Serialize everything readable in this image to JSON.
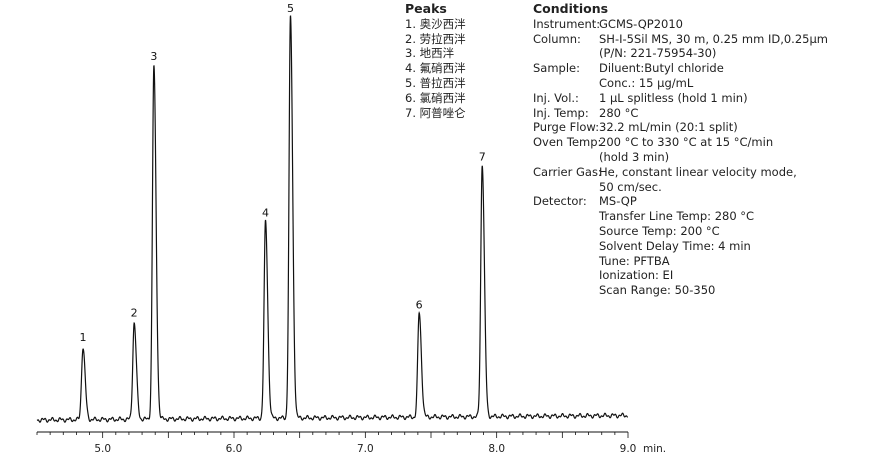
{
  "chart_data": {
    "type": "line",
    "title": "",
    "xlabel": "min.",
    "ylabel": "",
    "xlim": [
      4.5,
      9.0
    ],
    "ylim": [
      0,
      100
    ],
    "x_ticks": [
      "5.0",
      "6.0",
      "7.0",
      "8.0",
      "9.0"
    ],
    "grid": false,
    "baseline": 3,
    "peaks": [
      {
        "label": "1",
        "rt": 4.85,
        "height": 18
      },
      {
        "label": "2",
        "rt": 5.24,
        "height": 24
      },
      {
        "label": "3",
        "rt": 5.39,
        "height": 88
      },
      {
        "label": "4",
        "rt": 6.24,
        "height": 49
      },
      {
        "label": "5",
        "rt": 6.43,
        "height": 100
      },
      {
        "label": "6",
        "rt": 7.41,
        "height": 26
      },
      {
        "label": "7",
        "rt": 7.89,
        "height": 63
      }
    ]
  },
  "peaks_panel": {
    "title": "Peaks",
    "items": [
      "1. 奥沙西泮",
      "2. 劳拉西泮",
      "3. 地西泮",
      "4. 氟硝西泮",
      "5. 普拉西泮",
      "6. 氯硝西泮",
      "7. 阿普唑仑"
    ]
  },
  "conditions": {
    "title": "Conditions",
    "rows": [
      {
        "label": "Instrument:",
        "value": "GCMS-QP2010"
      },
      {
        "label": "Column:",
        "value": "SH-I-5Sil MS, 30 m, 0.25 mm ID,0.25μm"
      },
      {
        "label": "",
        "value": "(P/N: 221-75954-30)"
      },
      {
        "label": "Sample:",
        "value": "Diluent:Butyl chloride"
      },
      {
        "label": "",
        "value": "Conc.: 15 μg/mL"
      },
      {
        "label": "Inj. Vol.:",
        "value": "1 μL splitless (hold 1 min)"
      },
      {
        "label": "Inj. Temp:",
        "value": "280 °C"
      },
      {
        "label": "Purge Flow:",
        "value": "32.2 mL/min (20:1 split)"
      },
      {
        "label": "Oven Temp:",
        "value": "200 °C to 330 °C at 15 °C/min",
        "wrap": true
      },
      {
        "label": "",
        "value": "(hold 3 min)"
      },
      {
        "label": "Carrier Gas:",
        "value": "He, constant linear velocity mode,"
      },
      {
        "label": "",
        "value": "50 cm/sec."
      },
      {
        "label": "Detector:",
        "value": "MS-QP"
      },
      {
        "label": "",
        "value": "Transfer Line Temp: 280 °C"
      },
      {
        "label": "",
        "value": "Source Temp: 200 °C"
      },
      {
        "label": "",
        "value": "Solvent Delay Time: 4 min"
      },
      {
        "label": "",
        "value": "Tune: PFTBA"
      },
      {
        "label": "",
        "value": "Ionization: EI"
      },
      {
        "label": "",
        "value": "Scan Range: 50-350"
      }
    ]
  }
}
